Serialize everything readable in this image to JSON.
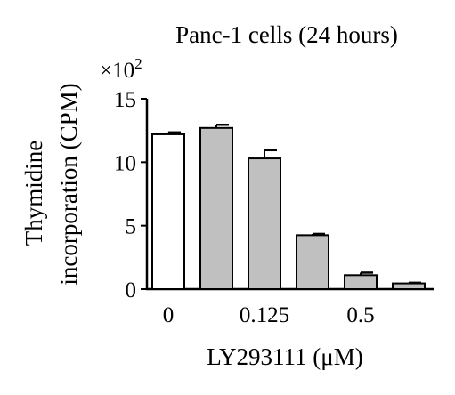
{
  "chart_data": {
    "type": "bar",
    "title": "Panc-1 cells (24 hours)",
    "multiplier_label": "×10",
    "multiplier_exponent": "2",
    "ylabel_line1": "Thymidine",
    "ylabel_line2": "incorporation (CPM)",
    "xlabel": "LY293111 (μM)",
    "ylim": [
      0,
      15
    ],
    "yticks": [
      0,
      5,
      10,
      15
    ],
    "xtick_labels": [
      "0",
      "0.125",
      "0.5"
    ],
    "bars": [
      {
        "value": 12.2,
        "error": 0.15,
        "fill": "#ffffff"
      },
      {
        "value": 12.7,
        "error": 0.25,
        "fill": "#c0c0c0"
      },
      {
        "value": 10.3,
        "error": 0.65,
        "fill": "#c0c0c0"
      },
      {
        "value": 4.25,
        "error": 0.1,
        "fill": "#c0c0c0"
      },
      {
        "value": 1.1,
        "error": 0.2,
        "fill": "#c0c0c0"
      },
      {
        "value": 0.45,
        "error": 0.05,
        "fill": "#c0c0c0"
      }
    ]
  }
}
